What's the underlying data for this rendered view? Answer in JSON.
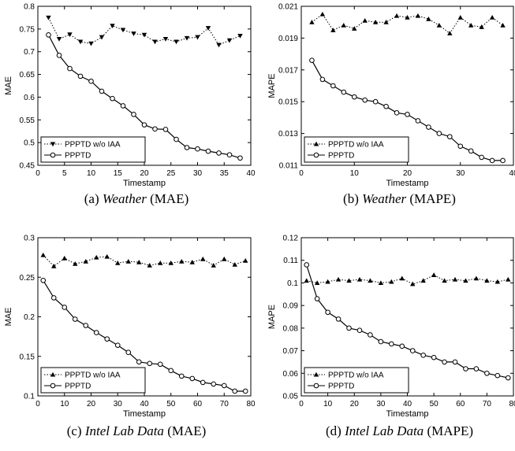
{
  "chart_data": [
    {
      "type": "line",
      "caption_prefix": "(a) ",
      "caption_italic": "Weather",
      "caption_suffix": " (MAE)",
      "xlabel": "Timestamp",
      "ylabel": "MAE",
      "xlim": [
        0,
        40
      ],
      "ylim": [
        0.45,
        0.8
      ],
      "xticks": [
        "0",
        "5",
        "10",
        "15",
        "20",
        "25",
        "30",
        "35",
        "40"
      ],
      "yticks": [
        "0.45",
        "0.5",
        "0.55",
        "0.6",
        "0.65",
        "0.7",
        "0.75",
        "0.8"
      ],
      "legend_position": "bottom-left",
      "series": [
        {
          "name": "PPPTD w/o IAA",
          "marker": "triangle-down",
          "style": "dotted",
          "x": [
            2,
            4,
            6,
            8,
            10,
            12,
            14,
            16,
            18,
            20,
            22,
            24,
            26,
            28,
            30,
            32,
            34,
            36,
            38
          ],
          "y": [
            0.775,
            0.728,
            0.738,
            0.722,
            0.718,
            0.732,
            0.757,
            0.748,
            0.74,
            0.737,
            0.722,
            0.728,
            0.722,
            0.73,
            0.732,
            0.752,
            0.715,
            0.725,
            0.735
          ]
        },
        {
          "name": "PPPTD",
          "marker": "circle",
          "style": "solid",
          "x": [
            2,
            4,
            6,
            8,
            10,
            12,
            14,
            16,
            18,
            20,
            22,
            24,
            26,
            28,
            30,
            32,
            34,
            36,
            38
          ],
          "y": [
            0.737,
            0.692,
            0.663,
            0.646,
            0.635,
            0.613,
            0.597,
            0.581,
            0.562,
            0.539,
            0.53,
            0.529,
            0.507,
            0.489,
            0.486,
            0.481,
            0.477,
            0.473,
            0.466
          ]
        }
      ]
    },
    {
      "type": "line",
      "caption_prefix": "(b) ",
      "caption_italic": "Weather",
      "caption_suffix": " (MAPE)",
      "xlabel": "Timestamp",
      "ylabel": "MAPE",
      "xlim": [
        0,
        40
      ],
      "ylim": [
        0.011,
        0.021
      ],
      "xticks": [
        "0",
        "10",
        "20",
        "30",
        "40"
      ],
      "yticks": [
        "0.011",
        "0.013",
        "0.015",
        "0.017",
        "0.019",
        "0.021"
      ],
      "legend_position": "bottom-left",
      "series": [
        {
          "name": "PPPTD w/o IAA",
          "marker": "triangle-up",
          "style": "dotted",
          "x": [
            2,
            4,
            6,
            8,
            10,
            12,
            14,
            16,
            18,
            20,
            22,
            24,
            26,
            28,
            30,
            32,
            34,
            36,
            38
          ],
          "y": [
            0.02,
            0.0205,
            0.0195,
            0.0198,
            0.0196,
            0.0201,
            0.02,
            0.02,
            0.0204,
            0.0203,
            0.0204,
            0.0202,
            0.0198,
            0.0193,
            0.0203,
            0.0198,
            0.0197,
            0.0203,
            0.0198
          ]
        },
        {
          "name": "PPPTD",
          "marker": "circle",
          "style": "solid",
          "x": [
            2,
            4,
            6,
            8,
            10,
            12,
            14,
            16,
            18,
            20,
            22,
            24,
            26,
            28,
            30,
            32,
            34,
            36,
            38
          ],
          "y": [
            0.0176,
            0.0164,
            0.016,
            0.0156,
            0.0153,
            0.0151,
            0.015,
            0.0147,
            0.0143,
            0.0142,
            0.0138,
            0.0134,
            0.013,
            0.0128,
            0.0122,
            0.0119,
            0.0115,
            0.0113,
            0.0113
          ]
        }
      ]
    },
    {
      "type": "line",
      "caption_prefix": "(c) ",
      "caption_italic": "Intel Lab Data",
      "caption_suffix": " (MAE)",
      "xlabel": "Timestamp",
      "ylabel": "MAE",
      "xlim": [
        0,
        80
      ],
      "ylim": [
        0.1,
        0.3
      ],
      "xticks": [
        "0",
        "10",
        "20",
        "30",
        "40",
        "50",
        "60",
        "70",
        "80"
      ],
      "yticks": [
        "0.1",
        "0.15",
        "0.2",
        "0.25",
        "0.3"
      ],
      "legend_position": "bottom-left",
      "series": [
        {
          "name": "PPPTD w/o IAA",
          "marker": "triangle-up",
          "style": "dotted",
          "x": [
            2,
            6,
            10,
            14,
            18,
            22,
            26,
            30,
            34,
            38,
            42,
            46,
            50,
            54,
            58,
            62,
            66,
            70,
            74,
            78
          ],
          "y": [
            0.278,
            0.264,
            0.274,
            0.267,
            0.27,
            0.275,
            0.276,
            0.268,
            0.27,
            0.269,
            0.265,
            0.268,
            0.268,
            0.27,
            0.269,
            0.273,
            0.265,
            0.273,
            0.266,
            0.271
          ]
        },
        {
          "name": "PPPTD",
          "marker": "circle",
          "style": "solid",
          "x": [
            2,
            6,
            10,
            14,
            18,
            22,
            26,
            30,
            34,
            38,
            42,
            46,
            50,
            54,
            58,
            62,
            66,
            70,
            74,
            78
          ],
          "y": [
            0.246,
            0.224,
            0.212,
            0.197,
            0.189,
            0.18,
            0.172,
            0.164,
            0.155,
            0.143,
            0.141,
            0.14,
            0.132,
            0.125,
            0.122,
            0.117,
            0.115,
            0.113,
            0.106,
            0.106
          ]
        }
      ]
    },
    {
      "type": "line",
      "caption_prefix": "(d) ",
      "caption_italic": "Intel Lab Data",
      "caption_suffix": " (MAPE)",
      "xlabel": "Timestamp",
      "ylabel": "MAPE",
      "xlim": [
        0,
        80
      ],
      "ylim": [
        0.05,
        0.12
      ],
      "xticks": [
        "0",
        "10",
        "20",
        "30",
        "40",
        "50",
        "60",
        "70",
        "80"
      ],
      "yticks": [
        "0.05",
        "0.06",
        "0.07",
        "0.08",
        "0.09",
        "0.1",
        "0.11",
        "0.12"
      ],
      "legend_position": "bottom-left",
      "series": [
        {
          "name": "PPPTD w/o IAA",
          "marker": "triangle-up",
          "style": "dotted",
          "x": [
            2,
            6,
            10,
            14,
            18,
            22,
            26,
            30,
            34,
            38,
            42,
            46,
            50,
            54,
            58,
            62,
            66,
            70,
            74,
            78
          ],
          "y": [
            0.101,
            0.1,
            0.1005,
            0.1015,
            0.101,
            0.1015,
            0.101,
            0.1,
            0.1005,
            0.102,
            0.0995,
            0.101,
            0.1035,
            0.101,
            0.1015,
            0.101,
            0.102,
            0.101,
            0.1005,
            0.1015
          ]
        },
        {
          "name": "PPPTD",
          "marker": "circle",
          "style": "solid",
          "x": [
            2,
            6,
            10,
            14,
            18,
            22,
            26,
            30,
            34,
            38,
            42,
            46,
            50,
            54,
            58,
            62,
            66,
            70,
            74,
            78
          ],
          "y": [
            0.108,
            0.093,
            0.087,
            0.084,
            0.08,
            0.079,
            0.077,
            0.074,
            0.073,
            0.072,
            0.07,
            0.068,
            0.067,
            0.065,
            0.065,
            0.062,
            0.062,
            0.06,
            0.059,
            0.058
          ]
        }
      ]
    }
  ]
}
